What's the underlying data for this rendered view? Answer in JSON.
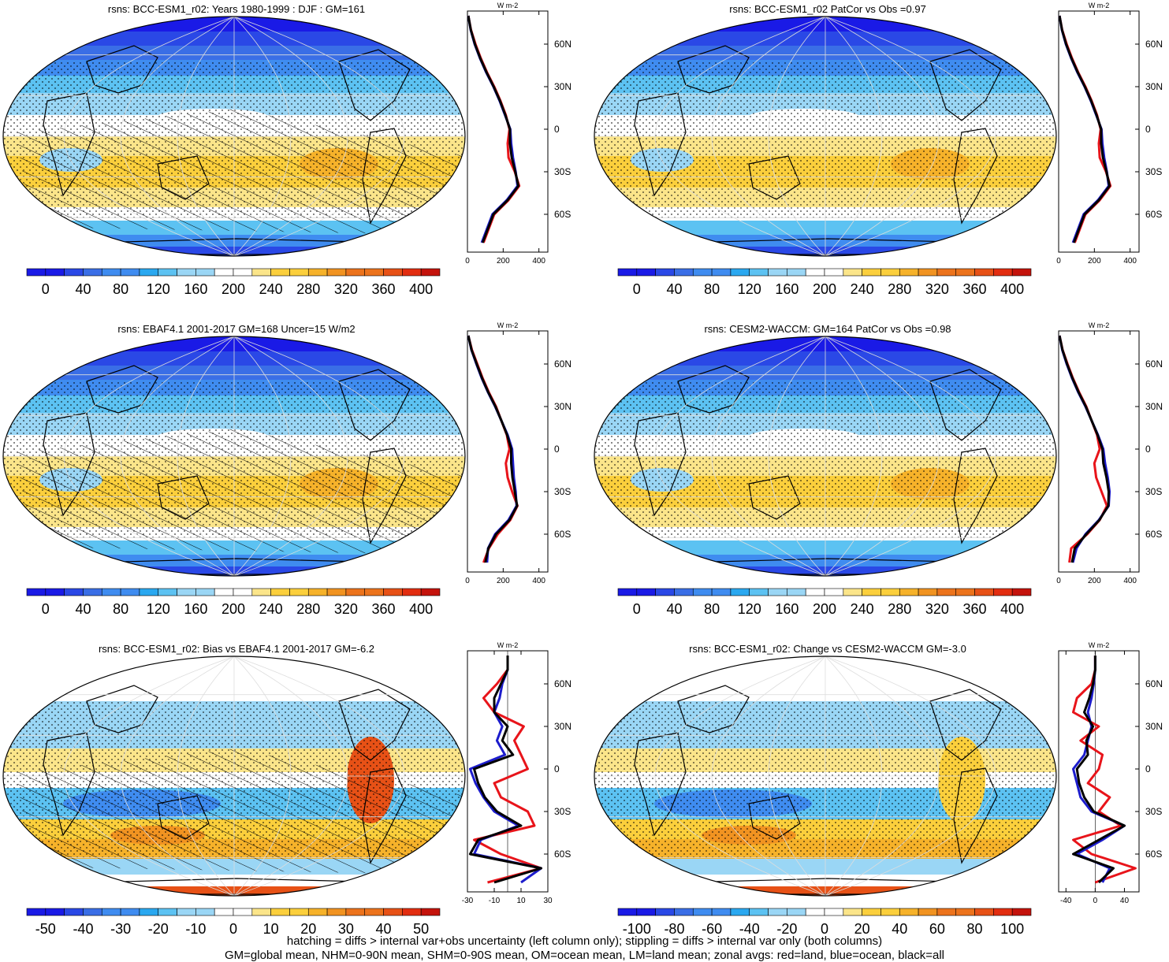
{
  "footer": {
    "line1": "hatching = diffs > internal var+obs uncertainty (left column only); stippling = diffs > internal var only (both columns)",
    "line2": "GM=global mean, NHM=0-90N mean, SHM=0-90S mean, OM=ocean mean, LM=land mean; zonal avgs: red=land, blue=ocean, black=all"
  },
  "chart_data": [
    {
      "type": "heatmap",
      "title": "rsns: BCC-ESM1_r02: Years 1980-1999 : DJF : GM=161",
      "colorbar_ticks": [
        "0",
        "40",
        "80",
        "120",
        "160",
        "200",
        "240",
        "280",
        "320",
        "360",
        "400"
      ],
      "zonal": {
        "unit": "W m-2",
        "lat_ticks": [
          "60N",
          "30N",
          "0",
          "30S",
          "60S"
        ],
        "x_ticks": [
          "0",
          "200",
          "400"
        ],
        "xlim": [
          0,
          450
        ],
        "lat": [
          80,
          70,
          60,
          50,
          40,
          30,
          20,
          10,
          0,
          -10,
          -20,
          -30,
          -40,
          -50,
          -60,
          -70,
          -80
        ],
        "land": [
          5,
          20,
          45,
          75,
          110,
          150,
          185,
          215,
          235,
          225,
          230,
          265,
          290,
          230,
          150,
          120,
          90
        ],
        "ocean": [
          5,
          18,
          40,
          70,
          105,
          145,
          180,
          210,
          240,
          245,
          255,
          270,
          280,
          220,
          140,
          110,
          80
        ],
        "all": [
          5,
          19,
          42,
          72,
          107,
          147,
          182,
          212,
          238,
          238,
          248,
          268,
          285,
          225,
          145,
          115,
          85
        ]
      }
    },
    {
      "type": "heatmap",
      "title": "rsns: BCC-ESM1_r02 PatCor vs Obs =0.97",
      "colorbar_ticks": [
        "0",
        "40",
        "80",
        "120",
        "160",
        "200",
        "240",
        "280",
        "320",
        "360",
        "400"
      ],
      "zonal": {
        "unit": "W m-2",
        "lat_ticks": [
          "60N",
          "30N",
          "0",
          "30S",
          "60S"
        ],
        "x_ticks": [
          "0",
          "200",
          "400"
        ],
        "xlim": [
          0,
          450
        ],
        "lat": [
          80,
          70,
          60,
          50,
          40,
          30,
          20,
          10,
          0,
          -10,
          -20,
          -30,
          -40,
          -50,
          -60,
          -70,
          -80
        ],
        "land": [
          5,
          20,
          45,
          75,
          110,
          150,
          185,
          215,
          235,
          225,
          230,
          265,
          290,
          230,
          150,
          120,
          90
        ],
        "ocean": [
          5,
          18,
          40,
          70,
          105,
          145,
          180,
          210,
          240,
          245,
          255,
          270,
          280,
          220,
          140,
          110,
          80
        ],
        "all": [
          5,
          19,
          42,
          72,
          107,
          147,
          182,
          212,
          238,
          238,
          248,
          268,
          285,
          225,
          145,
          115,
          85
        ]
      }
    },
    {
      "type": "heatmap",
      "title": "rsns: EBAF4.1 2001-2017 GM=168 Uncer=15 W/m2",
      "colorbar_ticks": [
        "0",
        "40",
        "80",
        "120",
        "160",
        "200",
        "240",
        "280",
        "320",
        "360",
        "400"
      ],
      "zonal": {
        "unit": "W m-2",
        "lat_ticks": [
          "60N",
          "30N",
          "0",
          "30S",
          "60S"
        ],
        "x_ticks": [
          "0",
          "200",
          "400"
        ],
        "xlim": [
          0,
          450
        ],
        "lat": [
          80,
          70,
          60,
          50,
          40,
          30,
          20,
          10,
          0,
          -10,
          -20,
          -30,
          -40,
          -50,
          -60,
          -70,
          -80
        ],
        "land": [
          5,
          25,
          55,
          85,
          120,
          160,
          190,
          220,
          235,
          215,
          225,
          250,
          280,
          240,
          170,
          120,
          90
        ],
        "ocean": [
          5,
          22,
          50,
          80,
          115,
          155,
          190,
          225,
          250,
          255,
          260,
          270,
          275,
          230,
          155,
          115,
          110
        ],
        "all": [
          5,
          23,
          52,
          82,
          117,
          157,
          190,
          222,
          245,
          245,
          252,
          265,
          278,
          235,
          160,
          117,
          100
        ]
      }
    },
    {
      "type": "heatmap",
      "title": "rsns: CESM2-WACCM: GM=164 PatCor vs Obs =0.98",
      "colorbar_ticks": [
        "0",
        "40",
        "80",
        "120",
        "160",
        "200",
        "240",
        "280",
        "320",
        "360",
        "400"
      ],
      "zonal": {
        "unit": "W m-2",
        "lat_ticks": [
          "60N",
          "30N",
          "0",
          "30S",
          "60S"
        ],
        "x_ticks": [
          "0",
          "200",
          "400"
        ],
        "xlim": [
          0,
          450
        ],
        "lat": [
          80,
          70,
          60,
          50,
          40,
          30,
          20,
          10,
          0,
          -10,
          -20,
          -30,
          -40,
          -50,
          -60,
          -70,
          -80
        ],
        "land": [
          5,
          22,
          50,
          80,
          115,
          155,
          185,
          215,
          230,
          200,
          210,
          240,
          270,
          230,
          160,
          70,
          60
        ],
        "ocean": [
          5,
          20,
          45,
          75,
          110,
          150,
          185,
          220,
          250,
          260,
          275,
          285,
          280,
          225,
          150,
          100,
          80
        ],
        "all": [
          5,
          21,
          47,
          77,
          112,
          152,
          185,
          218,
          245,
          250,
          268,
          280,
          278,
          228,
          155,
          90,
          75
        ]
      }
    },
    {
      "type": "heatmap",
      "title": "rsns: BCC-ESM1_r02: Bias vs EBAF4.1 2001-2017 GM=-6.2",
      "colorbar_ticks": [
        "-50",
        "-40",
        "-30",
        "-20",
        "-10",
        "0",
        "10",
        "20",
        "30",
        "40",
        "50"
      ],
      "zonal": {
        "unit": "W m-2",
        "lat_ticks": [
          "60N",
          "30N",
          "0",
          "30S",
          "60S"
        ],
        "x_ticks": [
          "-30",
          "-10",
          "10",
          "30"
        ],
        "xlim": [
          -30,
          30
        ],
        "lat": [
          80,
          70,
          60,
          50,
          40,
          30,
          20,
          10,
          0,
          -10,
          -20,
          -30,
          -40,
          -50,
          -60,
          -70,
          -80
        ],
        "land": [
          0,
          0,
          -8,
          -18,
          -10,
          12,
          5,
          10,
          15,
          -10,
          -5,
          15,
          20,
          -25,
          -5,
          25,
          -15
        ],
        "ocean": [
          0,
          0,
          -4,
          -6,
          -10,
          -4,
          -8,
          -2,
          -28,
          -24,
          -18,
          -10,
          8,
          -20,
          -25,
          25,
          10
        ],
        "all": [
          0,
          0,
          -5,
          -10,
          -10,
          0,
          -4,
          4,
          -25,
          -22,
          -17,
          -8,
          10,
          -22,
          -28,
          25,
          -10
        ]
      }
    },
    {
      "type": "heatmap",
      "title": "rsns: BCC-ESM1_r02: Change vs CESM2-WACCM GM=-3.0",
      "colorbar_ticks": [
        "-100",
        "-80",
        "-60",
        "-40",
        "-20",
        "0",
        "20",
        "40",
        "60",
        "80",
        "100"
      ],
      "zonal": {
        "unit": "W m-2",
        "lat_ticks": [
          "60N",
          "30N",
          "0",
          "30S",
          "60S"
        ],
        "x_ticks": [
          "-40",
          "0",
          "40"
        ],
        "xlim": [
          -50,
          60
        ],
        "lat": [
          80,
          70,
          60,
          50,
          40,
          30,
          20,
          10,
          0,
          -10,
          -20,
          -30,
          -40,
          -50,
          -60,
          -70,
          -80
        ],
        "land": [
          0,
          0,
          -5,
          -25,
          -30,
          5,
          -20,
          10,
          5,
          -10,
          20,
          5,
          35,
          -30,
          -5,
          55,
          0
        ],
        "ocean": [
          0,
          0,
          -2,
          -5,
          -10,
          -5,
          -10,
          -15,
          -30,
          -25,
          -20,
          -5,
          40,
          10,
          -25,
          20,
          10
        ],
        "all": [
          0,
          0,
          -3,
          -8,
          -15,
          -3,
          -12,
          -10,
          -25,
          -22,
          -15,
          -2,
          40,
          5,
          -30,
          25,
          5
        ]
      }
    }
  ]
}
